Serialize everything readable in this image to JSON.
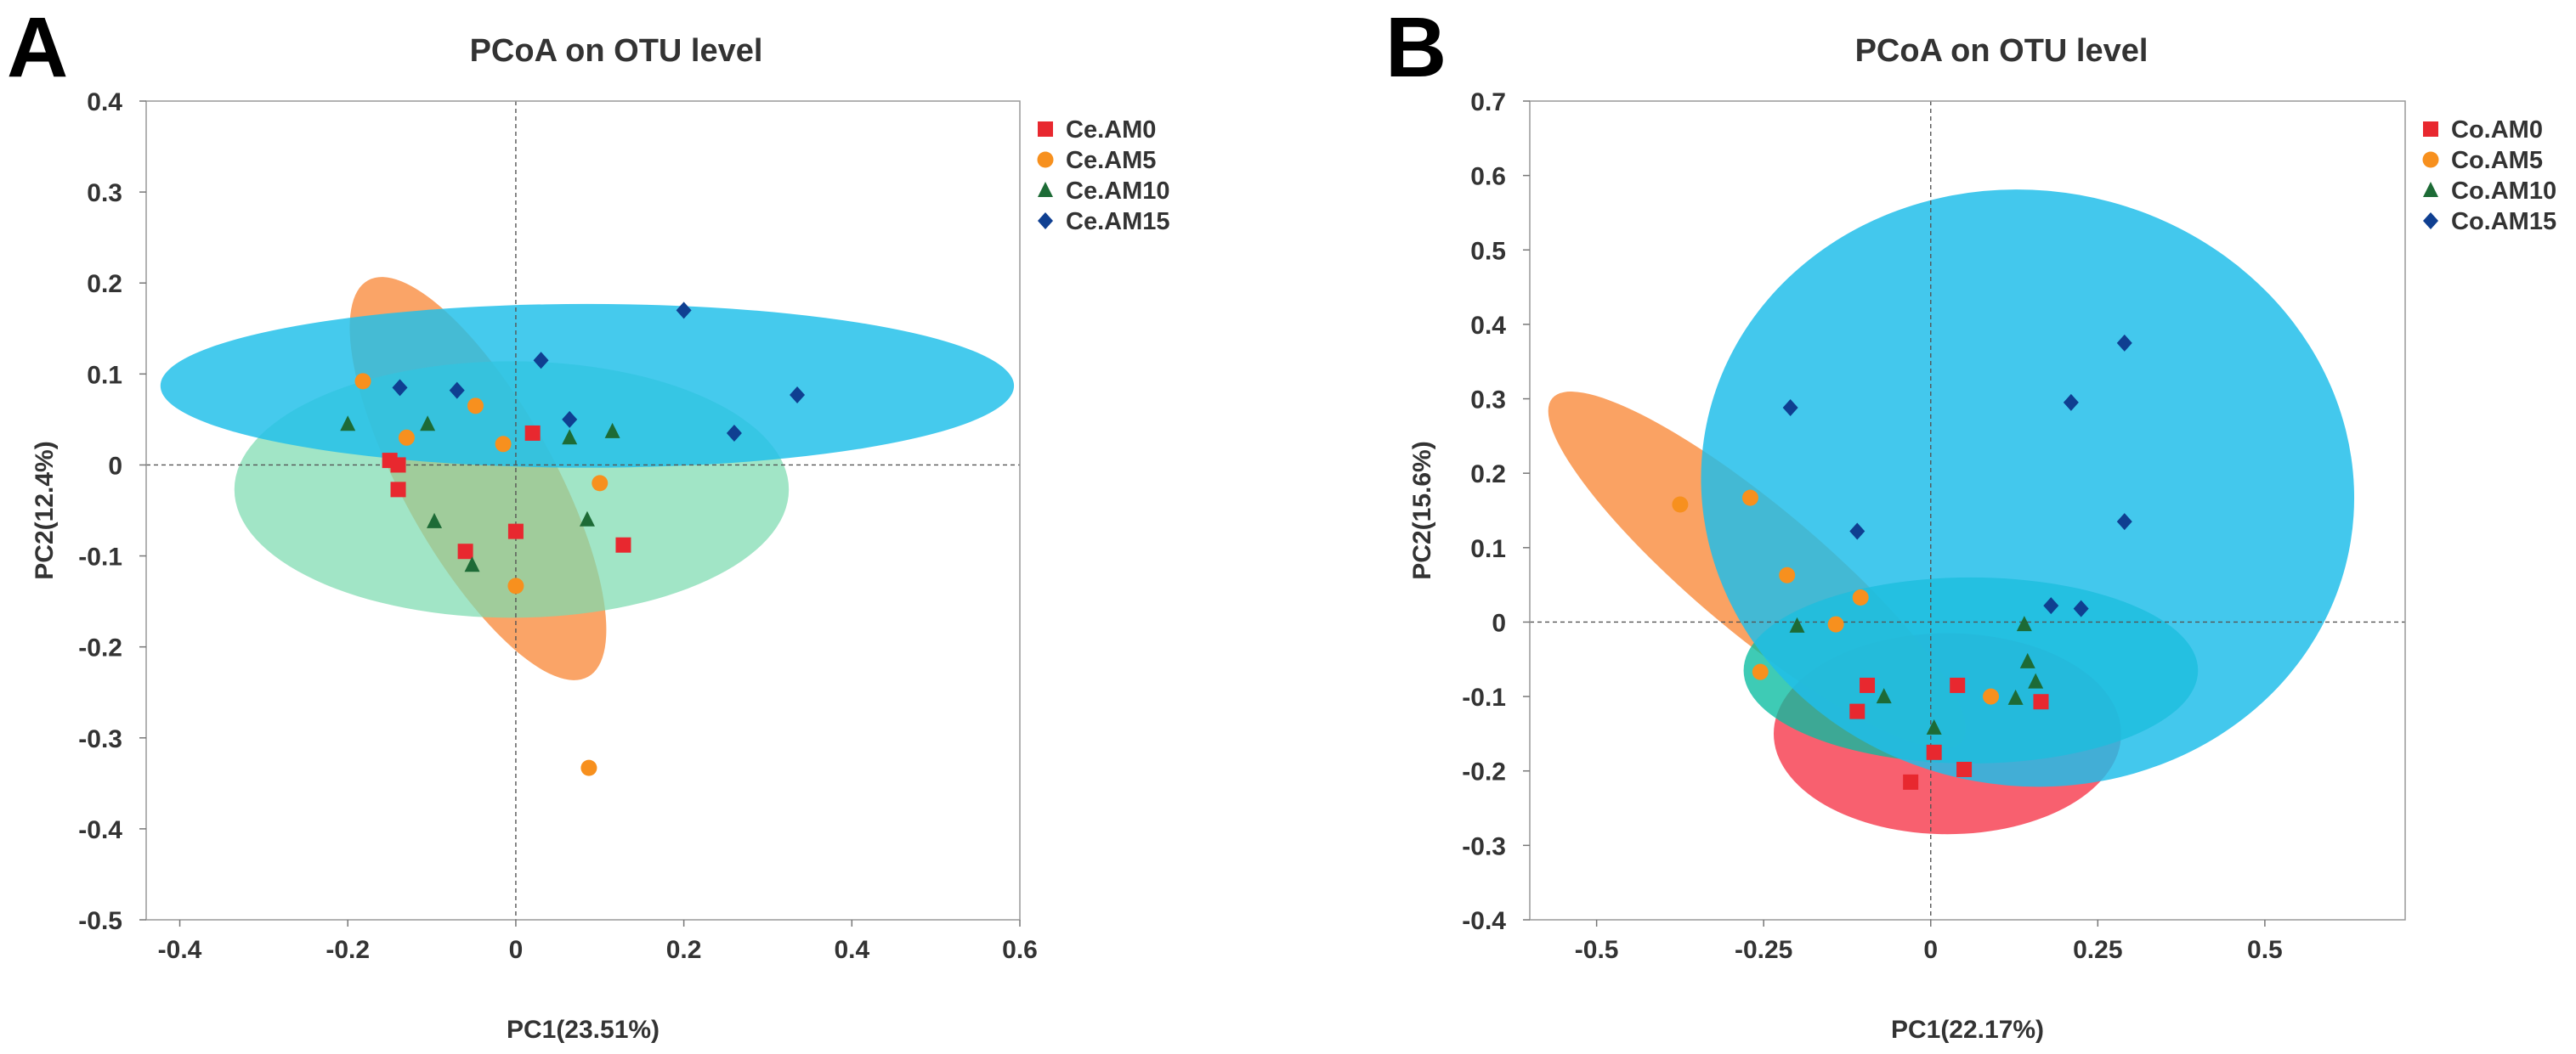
{
  "chart_data": [
    {
      "type": "scatter",
      "panel_label": "A",
      "title": "PCoA on OTU level",
      "xlabel": "PC1(23.51%)",
      "ylabel": "PC2(12.4%)",
      "xlim": [
        -0.44,
        0.6
      ],
      "ylim": [
        -0.5,
        0.4
      ],
      "xticks": [
        -0.4,
        -0.2,
        0,
        0.2,
        0.4,
        0.6
      ],
      "xtick_labels": [
        "-0.4",
        "-0.2",
        "0",
        "0.2",
        "0.4",
        "0.6"
      ],
      "yticks": [
        0.4,
        0.3,
        0.2,
        0.1,
        0,
        -0.1,
        -0.2,
        -0.3,
        -0.4,
        -0.5
      ],
      "ytick_labels": [
        "0.4",
        "0.3",
        "0.2",
        "0.1",
        "0",
        "-0.1",
        "-0.2",
        "-0.3",
        "-0.4",
        "-0.5"
      ],
      "legend_position": "top-right",
      "series": [
        {
          "name": "Ce.AM0",
          "marker": "square",
          "color": "#e8282f",
          "points": [
            [
              -0.15,
              0.005
            ],
            [
              -0.14,
              0.0
            ],
            [
              -0.14,
              -0.027
            ],
            [
              0.02,
              0.035
            ],
            [
              -0.06,
              -0.095
            ],
            [
              0.0,
              -0.073
            ],
            [
              0.128,
              -0.088
            ]
          ],
          "ellipse": null
        },
        {
          "name": "Ce.AM5",
          "marker": "circle",
          "color": "#f7901e",
          "points": [
            [
              -0.182,
              0.092
            ],
            [
              -0.13,
              0.03
            ],
            [
              -0.048,
              0.065
            ],
            [
              -0.015,
              0.023
            ],
            [
              0.1,
              -0.02
            ],
            [
              0.0,
              -0.133
            ],
            [
              0.087,
              -0.333
            ]
          ],
          "ellipse": {
            "cx": -0.045,
            "cy": -0.015,
            "rx": 0.27,
            "ry": 0.083,
            "angle": 61,
            "color": "#f98b3c",
            "opacity": 0.78
          }
        },
        {
          "name": "Ce.AM10",
          "marker": "triangle",
          "color": "#1d6b36",
          "points": [
            [
              -0.2,
              0.045
            ],
            [
              -0.105,
              0.045
            ],
            [
              -0.097,
              -0.062
            ],
            [
              -0.052,
              -0.11
            ],
            [
              0.064,
              0.03
            ],
            [
              0.115,
              0.037
            ],
            [
              0.085,
              -0.06
            ]
          ],
          "ellipse": {
            "cx": -0.005,
            "cy": -0.027,
            "rx": 0.33,
            "ry": 0.141,
            "angle": 0,
            "color": "#7ddbb0",
            "opacity": 0.72
          }
        },
        {
          "name": "Ce.AM15",
          "marker": "diamond",
          "color": "#0f3f91",
          "points": [
            [
              -0.138,
              0.085
            ],
            [
              -0.07,
              0.082
            ],
            [
              0.03,
              0.115
            ],
            [
              0.064,
              0.05
            ],
            [
              0.2,
              0.17
            ],
            [
              0.26,
              0.035
            ],
            [
              0.335,
              0.077
            ]
          ],
          "ellipse": {
            "cx": 0.085,
            "cy": 0.087,
            "rx": 0.508,
            "ry": 0.09,
            "angle": 0,
            "color": "#21c0ea",
            "opacity": 0.84
          }
        }
      ]
    },
    {
      "type": "scatter",
      "panel_label": "B",
      "title": "PCoA on OTU level",
      "xlabel": "PC1(22.17%)",
      "ylabel": "PC2(15.6%)",
      "xlim": [
        -0.6,
        0.71
      ],
      "ylim": [
        -0.4,
        0.7
      ],
      "xticks": [
        -0.5,
        -0.25,
        0,
        0.25,
        0.5
      ],
      "xtick_labels": [
        "-0.5",
        "-0.25",
        "0",
        "0.25",
        "0.5"
      ],
      "yticks": [
        0.7,
        0.6,
        0.5,
        0.4,
        0.3,
        0.2,
        0.1,
        0,
        -0.1,
        -0.2,
        -0.3,
        -0.4
      ],
      "ytick_labels": [
        "0.7",
        "0.6",
        "0.5",
        "0.4",
        "0.3",
        "0.2",
        "0.1",
        "0",
        "-0.1",
        "-0.2",
        "-0.3",
        "-0.4"
      ],
      "legend_position": "top-right",
      "series": [
        {
          "name": "Co.AM0",
          "marker": "square",
          "color": "#e8282f",
          "points": [
            [
              -0.095,
              -0.085
            ],
            [
              -0.11,
              -0.12
            ],
            [
              0.04,
              -0.085
            ],
            [
              0.165,
              -0.107
            ],
            [
              0.005,
              -0.175
            ],
            [
              0.05,
              -0.198
            ],
            [
              -0.03,
              -0.215
            ]
          ],
          "ellipse": {
            "cx": 0.025,
            "cy": -0.15,
            "rx": 0.26,
            "ry": 0.135,
            "angle": 0,
            "color": "#f74f5f",
            "opacity": 0.9
          }
        },
        {
          "name": "Co.AM5",
          "marker": "circle",
          "color": "#f7901e",
          "points": [
            [
              -0.375,
              0.158
            ],
            [
              -0.27,
              0.167
            ],
            [
              -0.215,
              0.063
            ],
            [
              -0.105,
              0.033
            ],
            [
              -0.142,
              -0.003
            ],
            [
              -0.255,
              -0.067
            ],
            [
              0.09,
              -0.1
            ]
          ],
          "ellipse": {
            "cx": -0.26,
            "cy": 0.07,
            "rx": 0.4,
            "ry": 0.085,
            "angle": 40,
            "color": "#f98b3c",
            "opacity": 0.8
          }
        },
        {
          "name": "Co.AM10",
          "marker": "triangle",
          "color": "#1d6b36",
          "points": [
            [
              -0.2,
              -0.005
            ],
            [
              -0.07,
              -0.1
            ],
            [
              0.005,
              -0.142
            ],
            [
              0.14,
              -0.003
            ],
            [
              0.145,
              -0.053
            ],
            [
              0.157,
              -0.08
            ],
            [
              0.127,
              -0.102
            ]
          ],
          "ellipse": {
            "cx": 0.06,
            "cy": -0.065,
            "rx": 0.34,
            "ry": 0.125,
            "angle": 0,
            "color": "#08bca0",
            "opacity": 0.78
          }
        },
        {
          "name": "Co.AM15",
          "marker": "diamond",
          "color": "#0f3f91",
          "points": [
            [
              -0.21,
              0.288
            ],
            [
              -0.11,
              0.122
            ],
            [
              0.21,
              0.295
            ],
            [
              0.29,
              0.375
            ],
            [
              0.29,
              0.135
            ],
            [
              0.18,
              0.022
            ],
            [
              0.225,
              0.018
            ]
          ],
          "ellipse": {
            "cx": 0.145,
            "cy": 0.18,
            "rx": 0.49,
            "ry": 0.4,
            "angle": 10,
            "color": "#1fbde9",
            "opacity": 0.84
          }
        }
      ]
    }
  ]
}
